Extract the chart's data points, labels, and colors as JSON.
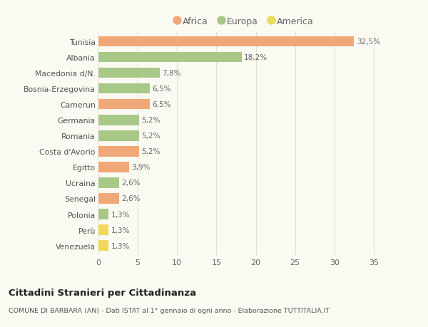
{
  "categories": [
    "Tunisia",
    "Albania",
    "Macedonia d/N.",
    "Bosnia-Erzegovina",
    "Camerun",
    "Germania",
    "Romania",
    "Costa d'Avorio",
    "Egitto",
    "Ucraina",
    "Senegal",
    "Polonia",
    "Perù",
    "Venezuela"
  ],
  "values": [
    32.5,
    18.2,
    7.8,
    6.5,
    6.5,
    5.2,
    5.2,
    5.2,
    3.9,
    2.6,
    2.6,
    1.3,
    1.3,
    1.3
  ],
  "labels": [
    "32,5%",
    "18,2%",
    "7,8%",
    "6,5%",
    "6,5%",
    "5,2%",
    "5,2%",
    "5,2%",
    "3,9%",
    "2,6%",
    "2,6%",
    "1,3%",
    "1,3%",
    "1,3%"
  ],
  "colors": [
    "#f0a878",
    "#a8c888",
    "#a8c888",
    "#a8c888",
    "#f0a878",
    "#a8c888",
    "#a8c888",
    "#f0a878",
    "#f0a878",
    "#a8c888",
    "#f0a878",
    "#a8c888",
    "#f0d858",
    "#f0d858"
  ],
  "legend_labels": [
    "Africa",
    "Europa",
    "America"
  ],
  "legend_colors": [
    "#f0a878",
    "#a8c888",
    "#f0d858"
  ],
  "title": "Cittadini Stranieri per Cittadinanza",
  "subtitle": "COMUNE DI BARBARA (AN) - Dati ISTAT al 1° gennaio di ogni anno - Elaborazione TUTTITALIA.IT",
  "xlim": [
    0,
    37
  ],
  "background_color": "#fafaf2",
  "grid_color": "#e0e0d0",
  "bar_height": 0.65,
  "label_fontsize": 7.5,
  "tick_fontsize": 8,
  "ytick_fontsize": 7.8
}
